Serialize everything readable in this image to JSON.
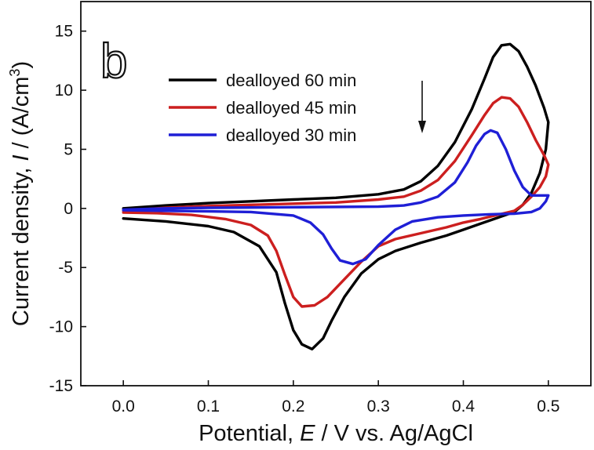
{
  "chart_data": {
    "type": "line",
    "panel_label": "b",
    "xlabel": {
      "pre": "Potential, ",
      "var": "E",
      "post": " / V vs. Ag/AgCl"
    },
    "ylabel": {
      "pre": "Current density, ",
      "var": "I",
      "post": " / (A/cm",
      "sup": "3",
      "close": ")"
    },
    "xlim": [
      -0.05,
      0.55
    ],
    "ylim": [
      -15,
      17.5
    ],
    "xticks": [
      0.0,
      0.1,
      0.2,
      0.3,
      0.4,
      0.5
    ],
    "xtick_labels": [
      "0.0",
      "0.1",
      "0.2",
      "0.3",
      "0.4",
      "0.5"
    ],
    "yticks": [
      -15,
      -10,
      -5,
      0,
      5,
      10,
      15
    ],
    "ytick_labels": [
      "-15",
      "-10",
      "-5",
      "0",
      "5",
      "10",
      "15"
    ],
    "grid": false,
    "legend_position": "top-left",
    "series": [
      {
        "name": "dealloyed 60 min",
        "color": "#000000",
        "points": [
          [
            0.0,
            0.0
          ],
          [
            0.05,
            0.25
          ],
          [
            0.1,
            0.45
          ],
          [
            0.15,
            0.6
          ],
          [
            0.2,
            0.75
          ],
          [
            0.25,
            0.9
          ],
          [
            0.3,
            1.2
          ],
          [
            0.33,
            1.6
          ],
          [
            0.35,
            2.3
          ],
          [
            0.37,
            3.6
          ],
          [
            0.39,
            5.6
          ],
          [
            0.41,
            8.4
          ],
          [
            0.425,
            11.0
          ],
          [
            0.435,
            12.8
          ],
          [
            0.445,
            13.8
          ],
          [
            0.455,
            13.9
          ],
          [
            0.465,
            13.3
          ],
          [
            0.475,
            12.0
          ],
          [
            0.485,
            10.4
          ],
          [
            0.495,
            8.5
          ],
          [
            0.5,
            7.3
          ],
          [
            0.497,
            5.0
          ],
          [
            0.49,
            3.0
          ],
          [
            0.48,
            1.3
          ],
          [
            0.47,
            0.3
          ],
          [
            0.46,
            -0.3
          ],
          [
            0.44,
            -0.8
          ],
          [
            0.42,
            -1.3
          ],
          [
            0.4,
            -1.8
          ],
          [
            0.38,
            -2.3
          ],
          [
            0.35,
            -2.9
          ],
          [
            0.32,
            -3.6
          ],
          [
            0.3,
            -4.3
          ],
          [
            0.28,
            -5.5
          ],
          [
            0.26,
            -7.5
          ],
          [
            0.245,
            -9.5
          ],
          [
            0.235,
            -11.0
          ],
          [
            0.222,
            -11.9
          ],
          [
            0.21,
            -11.5
          ],
          [
            0.2,
            -10.3
          ],
          [
            0.19,
            -8.0
          ],
          [
            0.18,
            -5.4
          ],
          [
            0.16,
            -3.2
          ],
          [
            0.13,
            -2.0
          ],
          [
            0.1,
            -1.5
          ],
          [
            0.05,
            -1.1
          ],
          [
            0.0,
            -0.85
          ]
        ]
      },
      {
        "name": "dealloyed 45 min",
        "color": "#cc1f1f",
        "points": [
          [
            0.0,
            -0.2
          ],
          [
            0.05,
            0.05
          ],
          [
            0.1,
            0.2
          ],
          [
            0.15,
            0.3
          ],
          [
            0.2,
            0.4
          ],
          [
            0.25,
            0.5
          ],
          [
            0.3,
            0.75
          ],
          [
            0.33,
            1.0
          ],
          [
            0.35,
            1.5
          ],
          [
            0.37,
            2.4
          ],
          [
            0.39,
            4.0
          ],
          [
            0.41,
            6.2
          ],
          [
            0.425,
            7.9
          ],
          [
            0.435,
            8.9
          ],
          [
            0.445,
            9.4
          ],
          [
            0.455,
            9.3
          ],
          [
            0.465,
            8.6
          ],
          [
            0.475,
            7.3
          ],
          [
            0.485,
            5.8
          ],
          [
            0.495,
            4.5
          ],
          [
            0.5,
            3.7
          ],
          [
            0.497,
            2.7
          ],
          [
            0.49,
            1.8
          ],
          [
            0.48,
            1.0
          ],
          [
            0.47,
            0.3
          ],
          [
            0.46,
            -0.2
          ],
          [
            0.44,
            -0.55
          ],
          [
            0.42,
            -0.9
          ],
          [
            0.4,
            -1.2
          ],
          [
            0.38,
            -1.6
          ],
          [
            0.35,
            -2.1
          ],
          [
            0.32,
            -2.6
          ],
          [
            0.3,
            -3.2
          ],
          [
            0.28,
            -4.5
          ],
          [
            0.26,
            -6.0
          ],
          [
            0.24,
            -7.5
          ],
          [
            0.225,
            -8.2
          ],
          [
            0.21,
            -8.3
          ],
          [
            0.2,
            -7.5
          ],
          [
            0.19,
            -5.6
          ],
          [
            0.18,
            -3.6
          ],
          [
            0.17,
            -2.3
          ],
          [
            0.15,
            -1.4
          ],
          [
            0.12,
            -0.9
          ],
          [
            0.08,
            -0.55
          ],
          [
            0.04,
            -0.4
          ],
          [
            0.0,
            -0.35
          ]
        ]
      },
      {
        "name": "dealloyed 30 min",
        "color": "#1f1fd6",
        "points": [
          [
            0.0,
            -0.1
          ],
          [
            0.05,
            0.0
          ],
          [
            0.1,
            0.05
          ],
          [
            0.2,
            0.1
          ],
          [
            0.3,
            0.15
          ],
          [
            0.33,
            0.25
          ],
          [
            0.35,
            0.5
          ],
          [
            0.37,
            1.0
          ],
          [
            0.39,
            2.2
          ],
          [
            0.405,
            3.9
          ],
          [
            0.415,
            5.3
          ],
          [
            0.425,
            6.3
          ],
          [
            0.432,
            6.6
          ],
          [
            0.44,
            6.4
          ],
          [
            0.45,
            5.0
          ],
          [
            0.46,
            3.2
          ],
          [
            0.47,
            1.8
          ],
          [
            0.48,
            1.1
          ],
          [
            0.5,
            1.1
          ],
          [
            0.497,
            0.6
          ],
          [
            0.49,
            0.0
          ],
          [
            0.48,
            -0.3
          ],
          [
            0.46,
            -0.45
          ],
          [
            0.43,
            -0.5
          ],
          [
            0.4,
            -0.6
          ],
          [
            0.37,
            -0.75
          ],
          [
            0.34,
            -1.1
          ],
          [
            0.32,
            -1.8
          ],
          [
            0.3,
            -3.1
          ],
          [
            0.285,
            -4.3
          ],
          [
            0.27,
            -4.7
          ],
          [
            0.255,
            -4.4
          ],
          [
            0.245,
            -3.4
          ],
          [
            0.235,
            -2.2
          ],
          [
            0.22,
            -1.2
          ],
          [
            0.2,
            -0.6
          ],
          [
            0.15,
            -0.3
          ],
          [
            0.1,
            -0.25
          ],
          [
            0.05,
            -0.2
          ],
          [
            0.0,
            -0.15
          ]
        ]
      }
    ]
  }
}
